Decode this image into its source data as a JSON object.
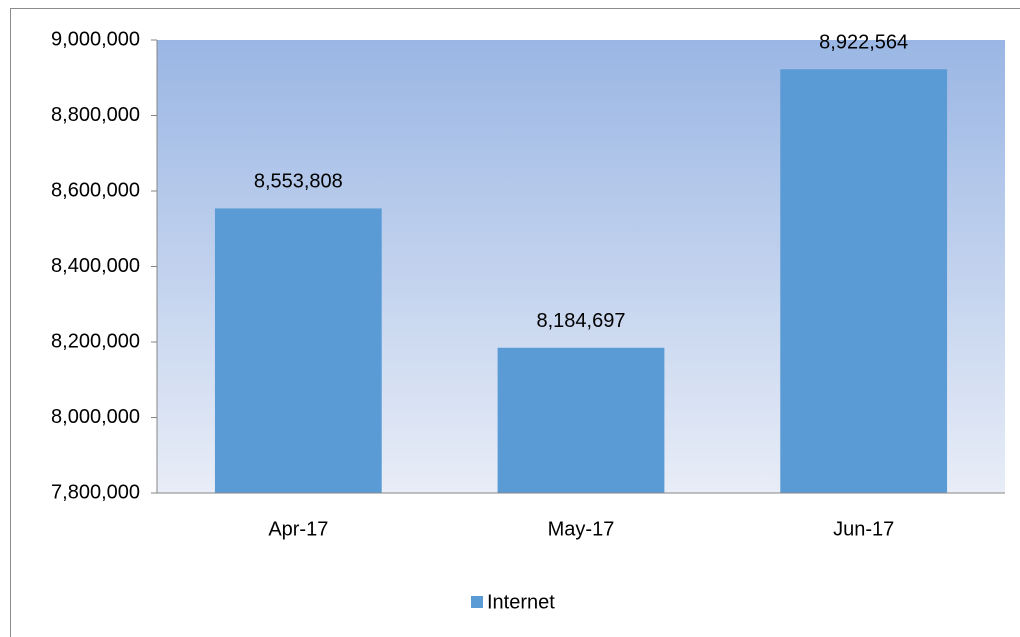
{
  "chart_data": {
    "type": "bar",
    "categories": [
      "Apr-17",
      "May-17",
      "Jun-17"
    ],
    "series": [
      {
        "name": "Internet",
        "color": "#5b9bd5",
        "values": [
          8553808,
          8184697,
          8922564
        ],
        "value_labels": [
          "8,553,808",
          "8,184,697",
          "8,922,564"
        ]
      }
    ],
    "ylim": [
      7800000,
      9000000
    ],
    "yticks": [
      {
        "value": 7800000,
        "label": "7,800,000"
      },
      {
        "value": 8000000,
        "label": "8,000,000"
      },
      {
        "value": 8200000,
        "label": "8,200,000"
      },
      {
        "value": 8400000,
        "label": "8,400,000"
      },
      {
        "value": 8600000,
        "label": "8,600,000"
      },
      {
        "value": 8800000,
        "label": "8,800,000"
      },
      {
        "value": 9000000,
        "label": "9,000,000"
      }
    ],
    "grid": false,
    "legend": "bottom"
  }
}
